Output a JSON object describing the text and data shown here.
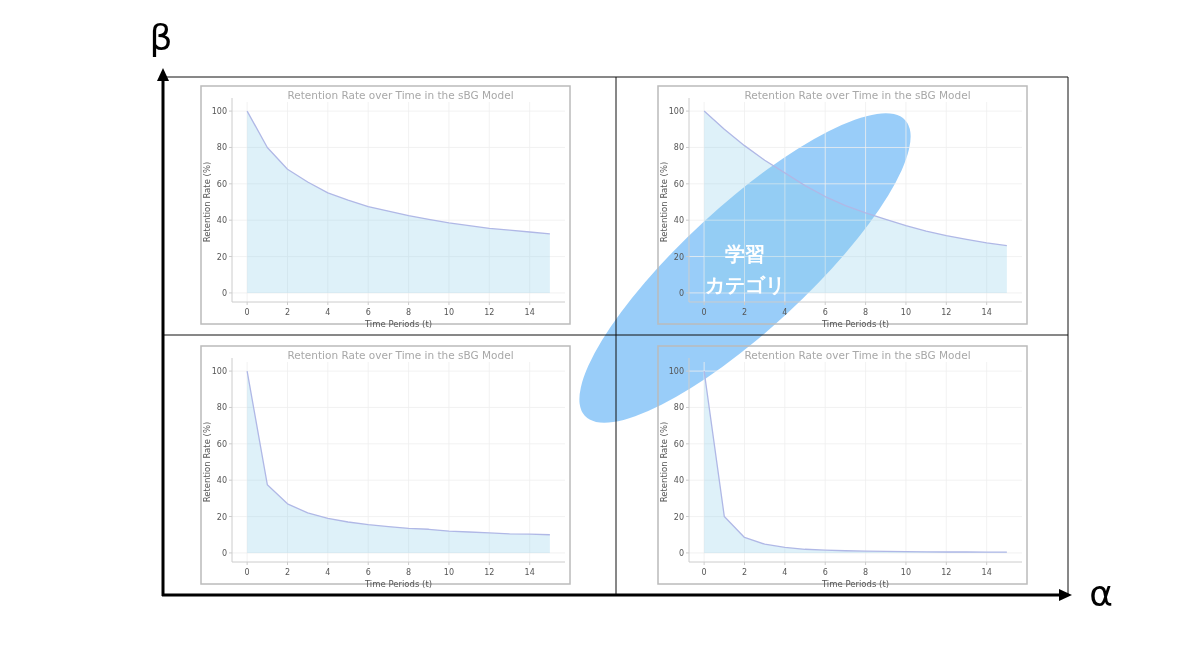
{
  "chart_data": [
    {
      "type": "area",
      "title": "Retention Rate over Time in the sBG Model",
      "xlabel": "Time Periods (t)",
      "ylabel": "Retention Rate (%)",
      "color": "#b0b8e6",
      "x": [
        0,
        1,
        2,
        3,
        4,
        5,
        6,
        7,
        8,
        9,
        10,
        11,
        12,
        13,
        14,
        15
      ],
      "values": [
        100,
        80,
        68,
        61,
        55,
        51,
        47.5,
        45,
        42.5,
        40.5,
        38.5,
        37,
        35.5,
        34.5,
        33.5,
        32.5
      ],
      "xlim": [
        -0.75,
        15.75
      ],
      "ylim": [
        -5,
        105
      ],
      "xticks": [
        0,
        2,
        4,
        6,
        8,
        10,
        12,
        14
      ],
      "yticks": [
        0,
        20,
        40,
        60,
        80,
        100
      ],
      "grid": true
    },
    {
      "type": "area",
      "title": "Retention Rate over Time in the sBG Model",
      "xlabel": "Time Periods (t)",
      "ylabel": "Retention Rate (%)",
      "color": "#b0b8e6",
      "x": [
        0,
        1,
        2,
        3,
        4,
        5,
        6,
        7,
        8,
        9,
        10,
        11,
        12,
        13,
        14,
        15
      ],
      "values": [
        100,
        90,
        81,
        73,
        66,
        59,
        53,
        48,
        44,
        40.5,
        37,
        34,
        31.5,
        29.5,
        27.5,
        26
      ],
      "xlim": [
        -0.75,
        15.75
      ],
      "ylim": [
        -5,
        105
      ],
      "xticks": [
        0,
        2,
        4,
        6,
        8,
        10,
        12,
        14
      ],
      "yticks": [
        0,
        20,
        40,
        60,
        80,
        100
      ],
      "grid": true
    },
    {
      "type": "area",
      "title": "Retention Rate over Time in the sBG Model",
      "xlabel": "Time Periods (t)",
      "ylabel": "Retention Rate (%)",
      "color": "#b0b8e6",
      "x": [
        0,
        1,
        2,
        3,
        4,
        5,
        6,
        7,
        8,
        9,
        10,
        11,
        12,
        13,
        14,
        15
      ],
      "values": [
        100,
        37.5,
        27,
        22,
        19,
        17,
        15.5,
        14.5,
        13.5,
        13,
        12,
        11.5,
        11,
        10.5,
        10.3,
        10
      ],
      "xlim": [
        -0.75,
        15.75
      ],
      "ylim": [
        -5,
        105
      ],
      "xticks": [
        0,
        2,
        4,
        6,
        8,
        10,
        12,
        14
      ],
      "yticks": [
        0,
        20,
        40,
        60,
        80,
        100
      ],
      "grid": true
    },
    {
      "type": "area",
      "title": "Retention Rate over Time in the sBG Model",
      "xlabel": "Time Periods (t)",
      "ylabel": "Retention Rate (%)",
      "color": "#b0b8e6",
      "x": [
        0,
        1,
        2,
        3,
        4,
        5,
        6,
        7,
        8,
        9,
        10,
        11,
        12,
        13,
        14,
        15
      ],
      "values": [
        100,
        20,
        8.5,
        4.8,
        3,
        2,
        1.5,
        1.2,
        1,
        0.8,
        0.7,
        0.6,
        0.5,
        0.5,
        0.4,
        0.4
      ],
      "xlim": [
        -0.75,
        15.75
      ],
      "ylim": [
        -5,
        105
      ],
      "xticks": [
        0,
        2,
        4,
        6,
        8,
        10,
        12,
        14
      ],
      "yticks": [
        0,
        20,
        40,
        60,
        80,
        100
      ],
      "grid": true
    },
    {
      "type": "other",
      "xlabel": "α",
      "ylabel": "β",
      "annotations": [
        "学習",
        "カテゴリ"
      ]
    }
  ]
}
